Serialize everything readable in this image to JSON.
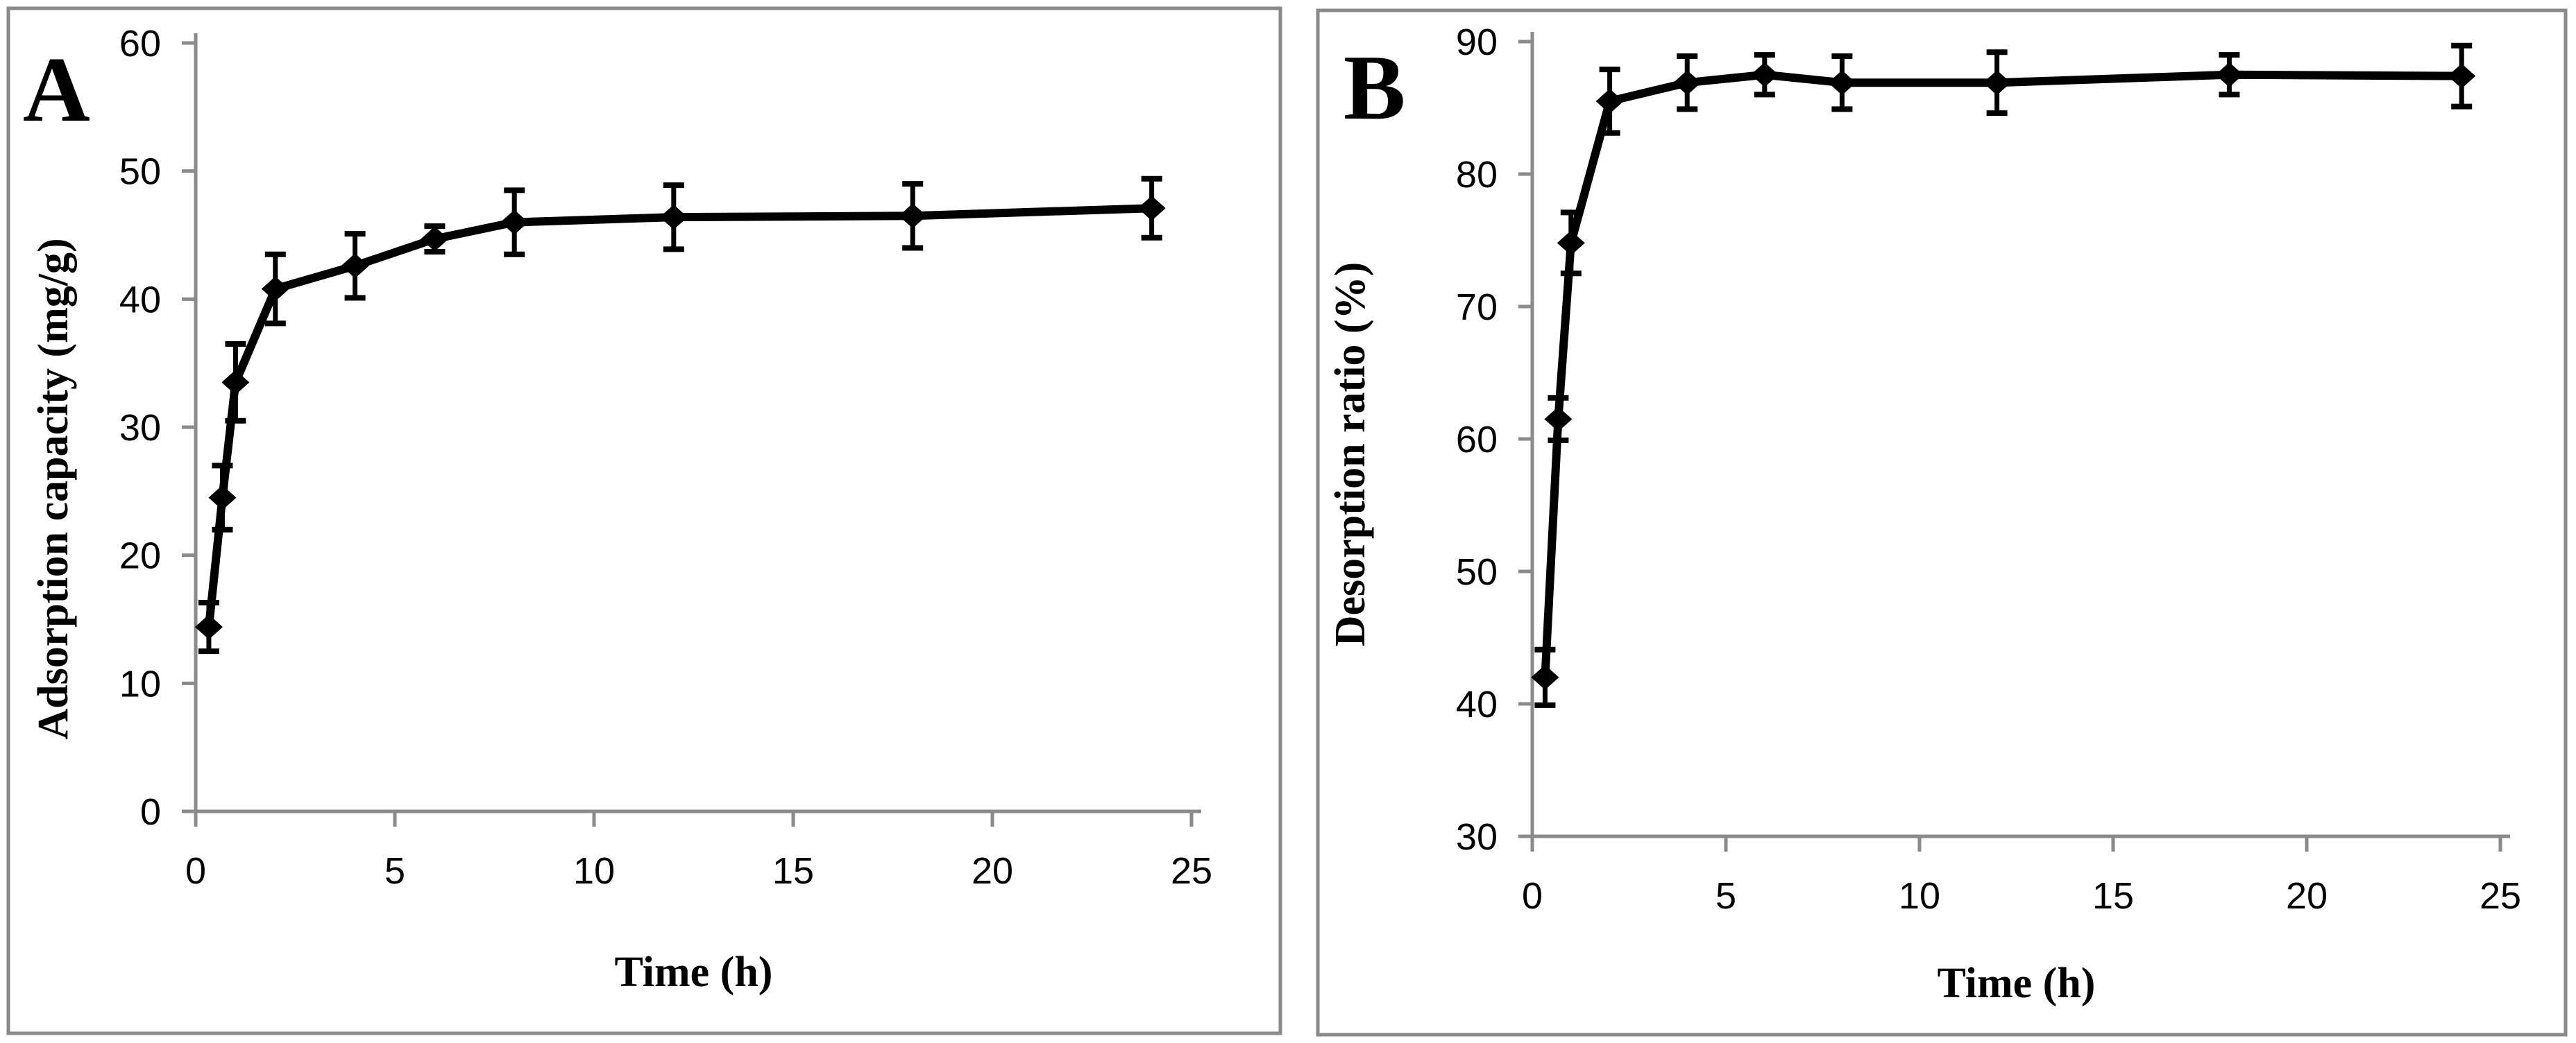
{
  "figure": {
    "background": "#ffffff",
    "axis_color": "#8a8a8a",
    "series_color": "#000000",
    "text_color": "#000000",
    "panel_labels": [
      "A",
      "B"
    ]
  },
  "chart_data": [
    {
      "type": "line",
      "panel_label": "A",
      "title": "",
      "xlabel": "Time (h)",
      "ylabel": "Adsorption capacity (mg/g)",
      "xlim": [
        0,
        25
      ],
      "ylim": [
        0,
        60
      ],
      "x_ticks": [
        0,
        5,
        10,
        15,
        20,
        25
      ],
      "y_ticks": [
        0,
        10,
        20,
        30,
        40,
        50,
        60
      ],
      "grid": false,
      "legend": false,
      "marker": "filled-diamond",
      "error_bars": true,
      "series": [
        {
          "name": "Adsorption capacity",
          "x": [
            0.33,
            0.67,
            1,
            2,
            4,
            6,
            8,
            12,
            18,
            24
          ],
          "y": [
            14.4,
            24.5,
            33.5,
            40.8,
            42.6,
            44.7,
            46.0,
            46.4,
            46.5,
            47.1
          ],
          "y_err": [
            1.9,
            2.5,
            3.0,
            2.7,
            2.5,
            1.0,
            2.5,
            2.5,
            2.5,
            2.3
          ]
        }
      ]
    },
    {
      "type": "line",
      "panel_label": "B",
      "title": "",
      "xlabel": "Time (h)",
      "ylabel": "Desorption ratio (%)",
      "xlim": [
        0,
        25
      ],
      "ylim": [
        30,
        90
      ],
      "x_ticks": [
        0,
        5,
        10,
        15,
        20,
        25
      ],
      "y_ticks": [
        30,
        40,
        50,
        60,
        70,
        80,
        90
      ],
      "grid": false,
      "legend": false,
      "marker": "filled-diamond",
      "error_bars": true,
      "series": [
        {
          "name": "Desorption ratio",
          "x": [
            0.33,
            0.67,
            1,
            2,
            4,
            6,
            8,
            12,
            18,
            24
          ],
          "y": [
            42.0,
            61.5,
            74.8,
            85.5,
            86.9,
            87.5,
            86.9,
            86.9,
            87.5,
            87.4
          ],
          "y_err": [
            2.1,
            1.6,
            2.3,
            2.4,
            2.0,
            1.5,
            2.0,
            2.3,
            1.5,
            2.3
          ]
        }
      ]
    }
  ]
}
